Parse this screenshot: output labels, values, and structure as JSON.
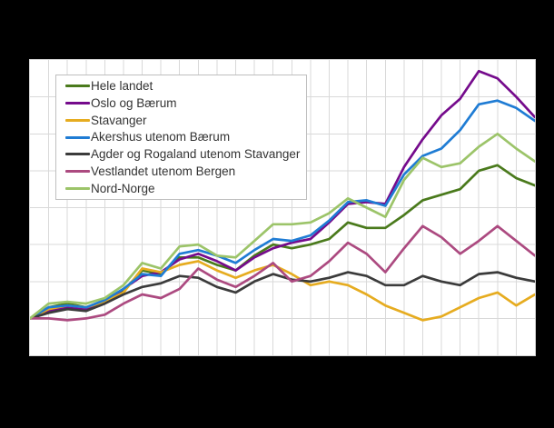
{
  "canvas": {
    "background_color": "#000000",
    "plot_background_color": "#ffffff",
    "gridline_color": "#d9d9d9",
    "plot_border_color": "#d6d6d6",
    "legend_border_color": "#bfbfbf",
    "legend_text_color": "#333333"
  },
  "chart_data": {
    "type": "line",
    "title": "",
    "xlabel": "",
    "ylabel": "",
    "x": [
      1,
      2,
      3,
      4,
      5,
      6,
      7,
      8,
      9,
      10,
      11,
      12,
      13,
      14,
      15,
      16,
      17,
      18,
      19,
      20,
      21,
      22,
      23,
      24,
      25,
      26,
      27,
      28
    ],
    "x_axis": {
      "tick_labels_visible": false,
      "points": 28
    },
    "y_axis": {
      "tick_labels_visible": false,
      "ylim": [
        80,
        240
      ],
      "gridline_step": 20,
      "start_value": 100
    },
    "grid": true,
    "legend_position": "top-left",
    "series": [
      {
        "name": "Hele landet",
        "color": "#4a7a1c",
        "values": [
          100,
          106,
          108,
          106,
          109,
          115,
          126,
          124,
          133,
          133,
          129,
          126,
          134,
          140,
          138,
          140,
          143,
          152,
          149,
          149,
          156,
          164,
          167,
          170,
          180,
          183,
          176,
          172
        ]
      },
      {
        "name": "Oslo og Bærum",
        "color": "#750b8c",
        "values": [
          100,
          104,
          106,
          105,
          109,
          116,
          123,
          125,
          132,
          135,
          131,
          126,
          133,
          138,
          141,
          143,
          152,
          162,
          163,
          162,
          182,
          197,
          210,
          219,
          234,
          230,
          220,
          209
        ]
      },
      {
        "name": "Stavanger",
        "color": "#e6ac20",
        "values": [
          100,
          105,
          107,
          106,
          109,
          114,
          127,
          125,
          129,
          131,
          126,
          122,
          126,
          129,
          124,
          118,
          120,
          118,
          113,
          107,
          103,
          99,
          101,
          106,
          111,
          114,
          107,
          113
        ]
      },
      {
        "name": "Akershus utenom Bærum",
        "color": "#1f7cd4",
        "values": [
          100,
          106,
          107,
          106,
          110,
          116,
          124,
          123,
          135,
          137,
          134,
          130,
          137,
          143,
          142,
          145,
          153,
          163,
          164,
          161,
          178,
          188,
          192,
          202,
          216,
          218,
          214,
          207
        ]
      },
      {
        "name": "Agder og Rogaland utenom Stavanger",
        "color": "#3b3b3b",
        "values": [
          100,
          103,
          105,
          104,
          108,
          113,
          117,
          119,
          123,
          122,
          117,
          114,
          120,
          124,
          121,
          120,
          122,
          125,
          123,
          118,
          118,
          123,
          120,
          118,
          124,
          125,
          122,
          120
        ]
      },
      {
        "name": "Vestlandet utenom Bergen",
        "color": "#ac4a80",
        "values": [
          100,
          100,
          99,
          100,
          102,
          108,
          113,
          111,
          116,
          127,
          121,
          117,
          123,
          130,
          120,
          123,
          131,
          141,
          135,
          125,
          138,
          150,
          144,
          135,
          142,
          150,
          142,
          134
        ]
      },
      {
        "name": "Nord-Norge",
        "color": "#9cc469",
        "values": [
          100,
          108,
          109,
          108,
          111,
          118,
          130,
          127,
          139,
          140,
          134,
          133,
          142,
          151,
          151,
          152,
          157,
          165,
          160,
          155,
          175,
          187,
          182,
          184,
          193,
          200,
          192,
          185
        ]
      }
    ]
  }
}
